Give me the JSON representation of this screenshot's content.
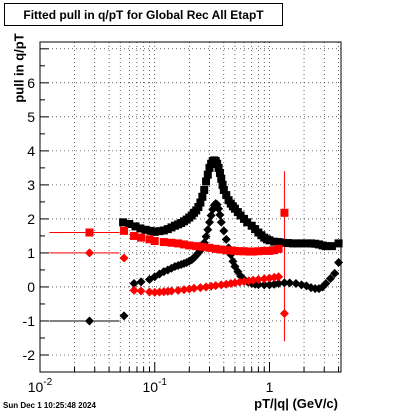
{
  "title": "Fitted pull in q/pT for Global Rec All EtapT",
  "datestamp": "Sun Dec  1 10:25:48 2024",
  "chart_data": {
    "type": "scatter",
    "xlabel": "pT/|q| (GeV/c)",
    "ylabel": "pull in q/pT",
    "x_scale": "log",
    "xlim": [
      0.01,
      4.2
    ],
    "ylim": [
      -2.5,
      7.2
    ],
    "x_tick_labels": [
      "10^-2",
      "10^-1",
      "1"
    ],
    "y_tick_labels": [
      "-2",
      "-1",
      "0",
      "1",
      "2",
      "3",
      "4",
      "5",
      "6"
    ],
    "grid": true,
    "colors": {
      "black": "#000000",
      "red": "#ff0000"
    },
    "series": [
      {
        "color": "#000000",
        "marker": "square",
        "points": [
          [
            0.053,
            1.9
          ],
          [
            0.06,
            1.85
          ],
          [
            0.068,
            1.78
          ],
          [
            0.075,
            1.72
          ],
          [
            0.083,
            1.68
          ],
          [
            0.092,
            1.65
          ],
          [
            0.1,
            1.62
          ],
          [
            0.11,
            1.64
          ],
          [
            0.12,
            1.66
          ],
          [
            0.13,
            1.7
          ],
          [
            0.14,
            1.75
          ],
          [
            0.15,
            1.8
          ],
          [
            0.16,
            1.84
          ],
          [
            0.17,
            1.88
          ],
          [
            0.18,
            1.93
          ],
          [
            0.19,
            1.98
          ],
          [
            0.2,
            2.04
          ],
          [
            0.21,
            2.1
          ],
          [
            0.22,
            2.18
          ],
          [
            0.23,
            2.25
          ],
          [
            0.24,
            2.35
          ],
          [
            0.25,
            2.48
          ],
          [
            0.26,
            2.65
          ],
          [
            0.27,
            2.85
          ],
          [
            0.28,
            3.1
          ],
          [
            0.29,
            3.3
          ],
          [
            0.3,
            3.5
          ],
          [
            0.31,
            3.62
          ],
          [
            0.32,
            3.7
          ],
          [
            0.33,
            3.72
          ],
          [
            0.34,
            3.7
          ],
          [
            0.35,
            3.62
          ],
          [
            0.36,
            3.5
          ],
          [
            0.37,
            3.35
          ],
          [
            0.38,
            3.18
          ],
          [
            0.39,
            3.0
          ],
          [
            0.4,
            2.85
          ],
          [
            0.42,
            2.7
          ],
          [
            0.44,
            2.55
          ],
          [
            0.46,
            2.45
          ],
          [
            0.48,
            2.37
          ],
          [
            0.5,
            2.3
          ],
          [
            0.53,
            2.2
          ],
          [
            0.56,
            2.1
          ],
          [
            0.6,
            2.0
          ],
          [
            0.64,
            1.9
          ],
          [
            0.7,
            1.8
          ],
          [
            0.75,
            1.7
          ],
          [
            0.8,
            1.6
          ],
          [
            0.85,
            1.52
          ],
          [
            0.9,
            1.45
          ],
          [
            0.95,
            1.4
          ],
          [
            1.0,
            1.37
          ],
          [
            1.1,
            1.33
          ],
          [
            1.2,
            1.32
          ],
          [
            1.3,
            1.3
          ],
          [
            1.45,
            1.29
          ],
          [
            1.6,
            1.28
          ],
          [
            1.75,
            1.28
          ],
          [
            1.9,
            1.28
          ],
          [
            2.1,
            1.28
          ],
          [
            2.3,
            1.28
          ],
          [
            2.5,
            1.27
          ],
          [
            2.7,
            1.25
          ],
          [
            2.9,
            1.22
          ],
          [
            3.1,
            1.2
          ],
          [
            3.5,
            1.2
          ],
          [
            4.0,
            1.28
          ]
        ]
      },
      {
        "color": "#000000",
        "marker": "diamond",
        "points": [
          [
            0.027,
            -1.0
          ],
          [
            0.054,
            -0.85
          ],
          [
            0.066,
            0.1
          ],
          [
            0.076,
            0.15
          ],
          [
            0.09,
            0.22
          ],
          [
            0.1,
            0.3
          ],
          [
            0.11,
            0.38
          ],
          [
            0.12,
            0.45
          ],
          [
            0.13,
            0.5
          ],
          [
            0.14,
            0.55
          ],
          [
            0.15,
            0.6
          ],
          [
            0.16,
            0.63
          ],
          [
            0.17,
            0.66
          ],
          [
            0.18,
            0.69
          ],
          [
            0.19,
            0.72
          ],
          [
            0.2,
            0.76
          ],
          [
            0.21,
            0.8
          ],
          [
            0.22,
            0.86
          ],
          [
            0.23,
            0.93
          ],
          [
            0.24,
            1.0
          ],
          [
            0.25,
            1.08
          ],
          [
            0.26,
            1.18
          ],
          [
            0.27,
            1.3
          ],
          [
            0.28,
            1.48
          ],
          [
            0.29,
            1.68
          ],
          [
            0.3,
            1.9
          ],
          [
            0.31,
            2.1
          ],
          [
            0.32,
            2.28
          ],
          [
            0.33,
            2.4
          ],
          [
            0.34,
            2.45
          ],
          [
            0.35,
            2.42
          ],
          [
            0.36,
            2.3
          ],
          [
            0.37,
            2.12
          ],
          [
            0.38,
            1.9
          ],
          [
            0.4,
            1.65
          ],
          [
            0.42,
            1.4
          ],
          [
            0.44,
            1.15
          ],
          [
            0.46,
            0.95
          ],
          [
            0.48,
            0.75
          ],
          [
            0.5,
            0.6
          ],
          [
            0.53,
            0.45
          ],
          [
            0.56,
            0.32
          ],
          [
            0.6,
            0.22
          ],
          [
            0.65,
            0.14
          ],
          [
            0.7,
            0.1
          ],
          [
            0.75,
            0.08
          ],
          [
            0.8,
            0.07
          ],
          [
            0.9,
            0.06
          ],
          [
            1.0,
            0.06
          ],
          [
            1.1,
            0.08
          ],
          [
            1.2,
            0.1
          ],
          [
            1.35,
            0.12
          ],
          [
            1.5,
            0.12
          ],
          [
            1.7,
            0.1
          ],
          [
            1.9,
            0.06
          ],
          [
            2.1,
            0.03
          ],
          [
            2.3,
            -0.02
          ],
          [
            2.5,
            -0.05
          ],
          [
            2.7,
            -0.05
          ],
          [
            2.9,
            0.0
          ],
          [
            3.1,
            0.1
          ],
          [
            3.4,
            0.25
          ],
          [
            3.7,
            0.4
          ],
          [
            4.0,
            0.72
          ]
        ]
      },
      {
        "color": "#ff0000",
        "marker": "square",
        "points": [
          [
            0.027,
            1.6
          ],
          [
            0.054,
            1.65
          ],
          [
            0.066,
            1.5
          ],
          [
            0.076,
            1.45
          ],
          [
            0.09,
            1.4
          ],
          [
            0.1,
            1.35
          ],
          [
            0.12,
            1.32
          ],
          [
            0.14,
            1.3
          ],
          [
            0.16,
            1.28
          ],
          [
            0.18,
            1.25
          ],
          [
            0.2,
            1.22
          ],
          [
            0.23,
            1.2
          ],
          [
            0.26,
            1.18
          ],
          [
            0.3,
            1.15
          ],
          [
            0.34,
            1.12
          ],
          [
            0.38,
            1.1
          ],
          [
            0.42,
            1.08
          ],
          [
            0.46,
            1.07
          ],
          [
            0.5,
            1.06
          ],
          [
            0.55,
            1.05
          ],
          [
            0.6,
            1.05
          ],
          [
            0.66,
            1.04
          ],
          [
            0.72,
            1.04
          ],
          [
            0.8,
            1.05
          ],
          [
            0.9,
            1.06
          ],
          [
            1.0,
            1.06
          ],
          [
            1.1,
            1.08
          ],
          [
            1.2,
            1.12
          ],
          [
            1.35,
            2.18
          ]
        ]
      },
      {
        "color": "#ff0000",
        "marker": "diamond",
        "points": [
          [
            0.027,
            1.0
          ],
          [
            0.054,
            0.85
          ],
          [
            0.066,
            -0.1
          ],
          [
            0.076,
            -0.12
          ],
          [
            0.09,
            -0.15
          ],
          [
            0.1,
            -0.16
          ],
          [
            0.11,
            -0.15
          ],
          [
            0.12,
            -0.14
          ],
          [
            0.13,
            -0.13
          ],
          [
            0.14,
            -0.12
          ],
          [
            0.16,
            -0.1
          ],
          [
            0.18,
            -0.08
          ],
          [
            0.2,
            -0.06
          ],
          [
            0.22,
            -0.04
          ],
          [
            0.25,
            -0.02
          ],
          [
            0.28,
            0.0
          ],
          [
            0.31,
            0.02
          ],
          [
            0.34,
            0.04
          ],
          [
            0.38,
            0.06
          ],
          [
            0.42,
            0.08
          ],
          [
            0.46,
            0.1
          ],
          [
            0.5,
            0.12
          ],
          [
            0.55,
            0.14
          ],
          [
            0.6,
            0.16
          ],
          [
            0.66,
            0.18
          ],
          [
            0.72,
            0.2
          ],
          [
            0.8,
            0.22
          ],
          [
            0.9,
            0.24
          ],
          [
            1.0,
            0.26
          ],
          [
            1.1,
            0.28
          ],
          [
            1.2,
            0.3
          ],
          [
            1.35,
            -0.78
          ]
        ]
      }
    ]
  }
}
